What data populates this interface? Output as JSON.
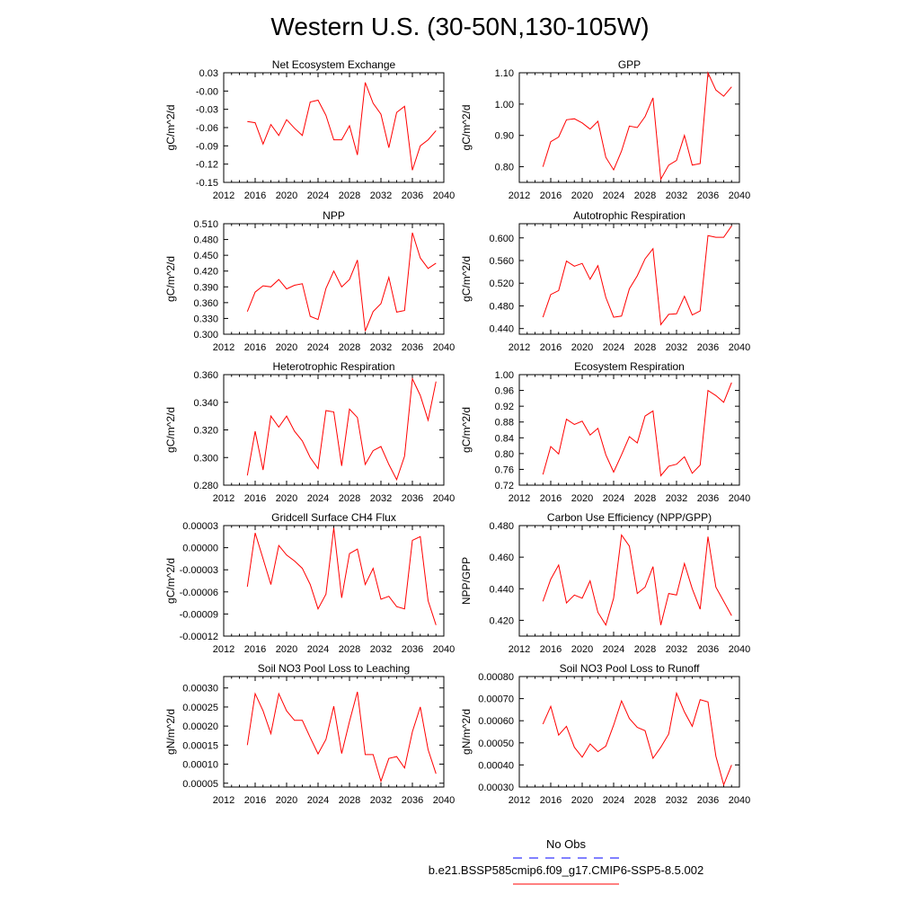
{
  "page": {
    "title": "Western U.S. (30-50N,130-105W)"
  },
  "legend": {
    "obs_label": "No Obs",
    "obs_color": "#0000ff",
    "model_label": "b.e21.BSSP585cmip6.f09_g17.CMIP6-SSP5-8.5.002",
    "model_color": "#ff0000"
  },
  "chart_data": [
    {
      "type": "line",
      "title": "Net Ecosystem Exchange",
      "ylabel": "gC/m^2/d",
      "xlim": [
        2012,
        2040
      ],
      "ylim": [
        -0.15,
        0.03
      ],
      "x_ticks": [
        2012,
        2016,
        2020,
        2024,
        2028,
        2032,
        2036,
        2040
      ],
      "y_ticks": [
        "0.03",
        "-0.00",
        "-0.03",
        "-0.06",
        "-0.09",
        "-0.12",
        "-0.15"
      ],
      "y_tick_values": [
        0.03,
        0.0,
        -0.03,
        -0.06,
        -0.09,
        -0.12,
        -0.15
      ],
      "x": [
        2015,
        2016,
        2017,
        2018,
        2019,
        2020,
        2021,
        2022,
        2023,
        2024,
        2025,
        2026,
        2027,
        2028,
        2029,
        2030,
        2031,
        2032,
        2033,
        2034,
        2035,
        2036,
        2037,
        2038,
        2039
      ],
      "series": [
        {
          "color": "#ff0000",
          "values": [
            -0.05,
            -0.052,
            -0.087,
            -0.055,
            -0.073,
            -0.047,
            -0.061,
            -0.073,
            -0.018,
            -0.015,
            -0.04,
            -0.08,
            -0.08,
            -0.057,
            -0.105,
            0.014,
            -0.02,
            -0.038,
            -0.093,
            -0.035,
            -0.025,
            -0.13,
            -0.09,
            -0.08,
            -0.065
          ]
        }
      ]
    },
    {
      "type": "line",
      "title": "GPP",
      "ylabel": "gC/m^2/d",
      "xlim": [
        2012,
        2040
      ],
      "ylim": [
        0.75,
        1.1
      ],
      "x_ticks": [
        2012,
        2016,
        2020,
        2024,
        2028,
        2032,
        2036,
        2040
      ],
      "y_ticks": [
        "1.10",
        "1.00",
        "0.90",
        "0.80"
      ],
      "y_tick_values": [
        1.1,
        1.0,
        0.9,
        0.8
      ],
      "x": [
        2015,
        2016,
        2017,
        2018,
        2019,
        2020,
        2021,
        2022,
        2023,
        2024,
        2025,
        2026,
        2027,
        2028,
        2029,
        2030,
        2031,
        2032,
        2033,
        2034,
        2035,
        2036,
        2037,
        2038,
        2039
      ],
      "series": [
        {
          "color": "#ff0000",
          "values": [
            0.8,
            0.88,
            0.895,
            0.95,
            0.953,
            0.94,
            0.92,
            0.945,
            0.83,
            0.79,
            0.85,
            0.93,
            0.925,
            0.96,
            1.02,
            0.76,
            0.805,
            0.82,
            0.9,
            0.805,
            0.81,
            1.1,
            1.045,
            1.025,
            1.055
          ]
        }
      ]
    },
    {
      "type": "line",
      "title": "NPP",
      "ylabel": "gC/m^2/d",
      "xlim": [
        2012,
        2040
      ],
      "ylim": [
        0.3,
        0.51
      ],
      "x_ticks": [
        2012,
        2016,
        2020,
        2024,
        2028,
        2032,
        2036,
        2040
      ],
      "y_ticks": [
        "0.510",
        "0.480",
        "0.450",
        "0.420",
        "0.390",
        "0.360",
        "0.330",
        "0.300"
      ],
      "y_tick_values": [
        0.51,
        0.48,
        0.45,
        0.42,
        0.39,
        0.36,
        0.33,
        0.3
      ],
      "x": [
        2015,
        2016,
        2017,
        2018,
        2019,
        2020,
        2021,
        2022,
        2023,
        2024,
        2025,
        2026,
        2027,
        2028,
        2029,
        2030,
        2031,
        2032,
        2033,
        2034,
        2035,
        2036,
        2037,
        2038,
        2039
      ],
      "series": [
        {
          "color": "#ff0000",
          "values": [
            0.343,
            0.38,
            0.392,
            0.39,
            0.404,
            0.386,
            0.393,
            0.396,
            0.334,
            0.328,
            0.387,
            0.42,
            0.39,
            0.404,
            0.441,
            0.306,
            0.343,
            0.358,
            0.408,
            0.342,
            0.345,
            0.493,
            0.445,
            0.425,
            0.435
          ]
        }
      ]
    },
    {
      "type": "line",
      "title": "Autotrophic Respiration",
      "ylabel": "gC/m^2/d",
      "xlim": [
        2012,
        2040
      ],
      "ylim": [
        0.43,
        0.625
      ],
      "x_ticks": [
        2012,
        2016,
        2020,
        2024,
        2028,
        2032,
        2036,
        2040
      ],
      "y_ticks": [
        "0.600",
        "0.560",
        "0.520",
        "0.480",
        "0.440"
      ],
      "y_tick_values": [
        0.6,
        0.56,
        0.52,
        0.48,
        0.44
      ],
      "x": [
        2015,
        2016,
        2017,
        2018,
        2019,
        2020,
        2021,
        2022,
        2023,
        2024,
        2025,
        2026,
        2027,
        2028,
        2029,
        2030,
        2031,
        2032,
        2033,
        2034,
        2035,
        2036,
        2037,
        2038,
        2039
      ],
      "series": [
        {
          "color": "#ff0000",
          "values": [
            0.46,
            0.5,
            0.507,
            0.559,
            0.55,
            0.555,
            0.527,
            0.551,
            0.495,
            0.46,
            0.462,
            0.51,
            0.533,
            0.563,
            0.581,
            0.447,
            0.465,
            0.466,
            0.497,
            0.464,
            0.471,
            0.604,
            0.601,
            0.601,
            0.621
          ]
        }
      ]
    },
    {
      "type": "line",
      "title": "Heterotrophic Respiration",
      "ylabel": "gC/m^2/d",
      "xlim": [
        2012,
        2040
      ],
      "ylim": [
        0.28,
        0.36
      ],
      "x_ticks": [
        2012,
        2016,
        2020,
        2024,
        2028,
        2032,
        2036,
        2040
      ],
      "y_ticks": [
        "0.360",
        "0.340",
        "0.320",
        "0.300",
        "0.280"
      ],
      "y_tick_values": [
        0.36,
        0.34,
        0.32,
        0.3,
        0.28
      ],
      "x": [
        2015,
        2016,
        2017,
        2018,
        2019,
        2020,
        2021,
        2022,
        2023,
        2024,
        2025,
        2026,
        2027,
        2028,
        2029,
        2030,
        2031,
        2032,
        2033,
        2034,
        2035,
        2036,
        2037,
        2038,
        2039
      ],
      "series": [
        {
          "color": "#ff0000",
          "values": [
            0.287,
            0.319,
            0.291,
            0.33,
            0.322,
            0.33,
            0.319,
            0.312,
            0.3,
            0.292,
            0.334,
            0.333,
            0.294,
            0.335,
            0.329,
            0.295,
            0.305,
            0.308,
            0.295,
            0.284,
            0.301,
            0.357,
            0.345,
            0.327,
            0.355
          ]
        }
      ]
    },
    {
      "type": "line",
      "title": "Ecosystem Respiration",
      "ylabel": "gC/m^2/d",
      "xlim": [
        2012,
        2040
      ],
      "ylim": [
        0.72,
        1.0
      ],
      "x_ticks": [
        2012,
        2016,
        2020,
        2024,
        2028,
        2032,
        2036,
        2040
      ],
      "y_ticks": [
        "1.00",
        "0.96",
        "0.92",
        "0.88",
        "0.84",
        "0.80",
        "0.76",
        "0.72"
      ],
      "y_tick_values": [
        1.0,
        0.96,
        0.92,
        0.88,
        0.84,
        0.8,
        0.76,
        0.72
      ],
      "x": [
        2015,
        2016,
        2017,
        2018,
        2019,
        2020,
        2021,
        2022,
        2023,
        2024,
        2025,
        2026,
        2027,
        2028,
        2029,
        2030,
        2031,
        2032,
        2033,
        2034,
        2035,
        2036,
        2037,
        2038,
        2039
      ],
      "series": [
        {
          "color": "#ff0000",
          "values": [
            0.747,
            0.818,
            0.799,
            0.887,
            0.874,
            0.882,
            0.847,
            0.864,
            0.797,
            0.753,
            0.797,
            0.843,
            0.827,
            0.895,
            0.908,
            0.744,
            0.768,
            0.773,
            0.792,
            0.75,
            0.771,
            0.96,
            0.947,
            0.93,
            0.98
          ]
        }
      ]
    },
    {
      "type": "line",
      "title": "Gridcell Surface CH4 Flux",
      "ylabel": "gC/m^2/d",
      "xlim": [
        2012,
        2040
      ],
      "ylim": [
        -0.00012,
        3e-05
      ],
      "x_ticks": [
        2012,
        2016,
        2020,
        2024,
        2028,
        2032,
        2036,
        2040
      ],
      "y_ticks": [
        "0.00003",
        "0.00000",
        "-0.00003",
        "-0.00006",
        "-0.00009",
        "-0.00012"
      ],
      "y_tick_values": [
        3e-05,
        0.0,
        -3e-05,
        -6e-05,
        -9e-05,
        -0.00012
      ],
      "x": [
        2015,
        2016,
        2017,
        2018,
        2019,
        2020,
        2021,
        2022,
        2023,
        2024,
        2025,
        2026,
        2027,
        2028,
        2029,
        2030,
        2031,
        2032,
        2033,
        2034,
        2035,
        2036,
        2037,
        2038,
        2039
      ],
      "series": [
        {
          "color": "#ff0000",
          "values": [
            -5.3e-05,
            2e-05,
            -1.5e-05,
            -5e-05,
            3e-06,
            -1e-05,
            -1.8e-05,
            -2.8e-05,
            -5e-05,
            -8.3e-05,
            -6.3e-05,
            2.7e-05,
            -6.8e-05,
            -8e-06,
            -2e-06,
            -5e-05,
            -2.8e-05,
            -7e-05,
            -6.6e-05,
            -8e-05,
            -8.3e-05,
            1e-05,
            1.5e-05,
            -7.2e-05,
            -0.000105
          ]
        }
      ]
    },
    {
      "type": "line",
      "title": "Carbon Use Efficiency (NPP/GPP)",
      "ylabel": "NPP/GPP",
      "xlim": [
        2012,
        2040
      ],
      "ylim": [
        0.41,
        0.48
      ],
      "x_ticks": [
        2012,
        2016,
        2020,
        2024,
        2028,
        2032,
        2036,
        2040
      ],
      "y_ticks": [
        "0.480",
        "0.460",
        "0.440",
        "0.420"
      ],
      "y_tick_values": [
        0.48,
        0.46,
        0.44,
        0.42
      ],
      "x": [
        2015,
        2016,
        2017,
        2018,
        2019,
        2020,
        2021,
        2022,
        2023,
        2024,
        2025,
        2026,
        2027,
        2028,
        2029,
        2030,
        2031,
        2032,
        2033,
        2034,
        2035,
        2036,
        2037,
        2038,
        2039
      ],
      "series": [
        {
          "color": "#ff0000",
          "values": [
            0.432,
            0.446,
            0.455,
            0.431,
            0.436,
            0.434,
            0.445,
            0.425,
            0.417,
            0.434,
            0.474,
            0.467,
            0.437,
            0.441,
            0.454,
            0.417,
            0.437,
            0.436,
            0.456,
            0.44,
            0.427,
            0.473,
            0.441,
            0.432,
            0.423
          ]
        }
      ]
    },
    {
      "type": "line",
      "title": "Soil NO3 Pool Loss to Leaching",
      "ylabel": "gN/m^2/d",
      "xlim": [
        2012,
        2040
      ],
      "ylim": [
        4e-05,
        0.00033
      ],
      "x_ticks": [
        2012,
        2016,
        2020,
        2024,
        2028,
        2032,
        2036,
        2040
      ],
      "y_ticks": [
        "0.00030",
        "0.00025",
        "0.00020",
        "0.00015",
        "0.00010",
        "0.00005"
      ],
      "y_tick_values": [
        0.0003,
        0.00025,
        0.0002,
        0.00015,
        0.0001,
        5e-05
      ],
      "x": [
        2015,
        2016,
        2017,
        2018,
        2019,
        2020,
        2021,
        2022,
        2023,
        2024,
        2025,
        2026,
        2027,
        2028,
        2029,
        2030,
        2031,
        2032,
        2033,
        2034,
        2035,
        2036,
        2037,
        2038,
        2039
      ],
      "series": [
        {
          "color": "#ff0000",
          "values": [
            0.00015,
            0.000285,
            0.00024,
            0.00018,
            0.000285,
            0.00024,
            0.000215,
            0.000215,
            0.00017,
            0.000127,
            0.000165,
            0.000252,
            0.000128,
            0.000212,
            0.00029,
            0.000125,
            0.000125,
            5.5e-05,
            0.000115,
            0.00012,
            9e-05,
            0.000185,
            0.00025,
            0.000138,
            7.5e-05
          ]
        }
      ]
    },
    {
      "type": "line",
      "title": "Soil NO3 Pool Loss to Runoff",
      "ylabel": "gN/m^2/d",
      "xlim": [
        2012,
        2040
      ],
      "ylim": [
        0.0003,
        0.0008
      ],
      "x_ticks": [
        2012,
        2016,
        2020,
        2024,
        2028,
        2032,
        2036,
        2040
      ],
      "y_ticks": [
        "0.00080",
        "0.00070",
        "0.00060",
        "0.00050",
        "0.00040",
        "0.00030"
      ],
      "y_tick_values": [
        0.0008,
        0.0007,
        0.0006,
        0.0005,
        0.0004,
        0.0003
      ],
      "x": [
        2015,
        2016,
        2017,
        2018,
        2019,
        2020,
        2021,
        2022,
        2023,
        2024,
        2025,
        2026,
        2027,
        2028,
        2029,
        2030,
        2031,
        2032,
        2033,
        2034,
        2035,
        2036,
        2037,
        2038,
        2039
      ],
      "series": [
        {
          "color": "#ff0000",
          "values": [
            0.000585,
            0.000665,
            0.000535,
            0.000575,
            0.00048,
            0.000435,
            0.000495,
            0.00046,
            0.000485,
            0.00058,
            0.00069,
            0.00061,
            0.00057,
            0.000555,
            0.00043,
            0.00048,
            0.00054,
            0.000725,
            0.00064,
            0.000575,
            0.000695,
            0.000685,
            0.00044,
            0.00031,
            0.0004
          ]
        }
      ]
    }
  ]
}
